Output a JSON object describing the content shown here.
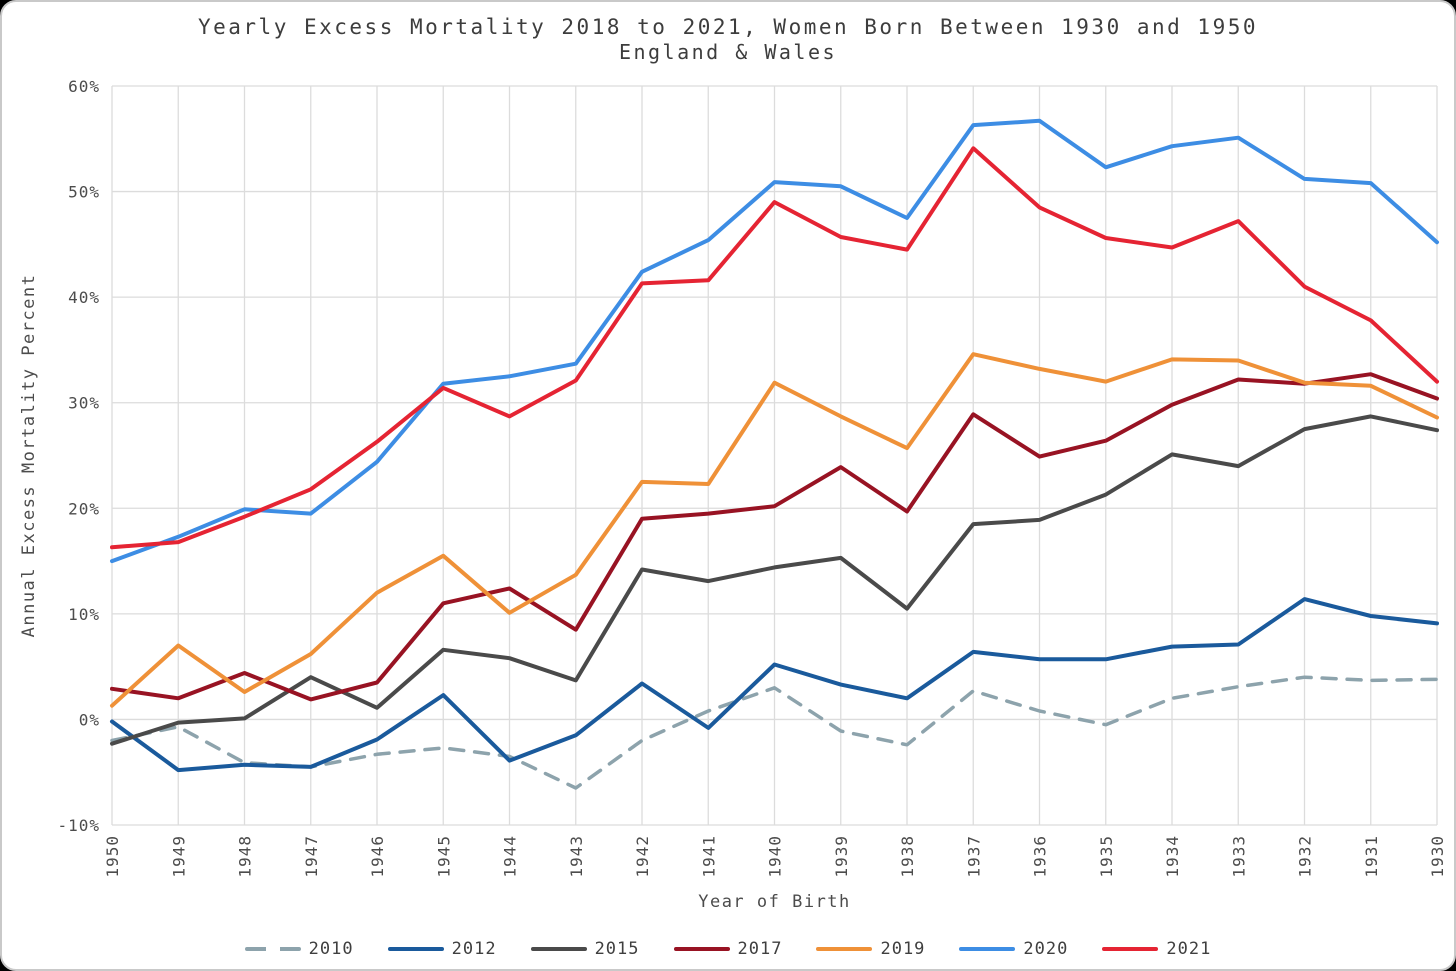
{
  "chart_data": {
    "type": "line",
    "title": "Yearly Excess Mortality 2018 to 2021, Women Born Between 1930 and 1950",
    "subtitle": "England & Wales",
    "xlabel": "Year of Birth",
    "ylabel": "Annual Excess Mortality Percent",
    "x_categories": [
      "1950",
      "1949",
      "1948",
      "1947",
      "1946",
      "1945",
      "1944",
      "1943",
      "1942",
      "1941",
      "1940",
      "1939",
      "1938",
      "1937",
      "1936",
      "1935",
      "1934",
      "1933",
      "1932",
      "1931",
      "1930"
    ],
    "ylim": [
      -10,
      60
    ],
    "ytick_values": [
      60,
      50,
      40,
      30,
      20,
      10,
      0,
      -10
    ],
    "ytick_labels": [
      "60%",
      "50%",
      "40%",
      "30%",
      "20%",
      "10%",
      "0%",
      "-10%"
    ],
    "grid": true,
    "legend_position": "bottom",
    "series": [
      {
        "name": "2010",
        "color": "#8da3ac",
        "dash": true,
        "values": [
          -2.0,
          -0.7,
          -4.1,
          -4.5,
          -3.3,
          -2.7,
          -3.5,
          -6.5,
          -2.0,
          0.8,
          3.0,
          -1.1,
          -2.4,
          2.7,
          0.8,
          -0.5,
          2.0,
          3.1,
          4.0,
          3.7,
          3.8
        ]
      },
      {
        "name": "2012",
        "color": "#1a5a9c",
        "dash": false,
        "values": [
          -0.2,
          -4.8,
          -4.3,
          -4.5,
          -1.9,
          2.3,
          -3.9,
          -1.5,
          3.4,
          -0.8,
          5.2,
          3.3,
          2.0,
          6.4,
          5.7,
          5.7,
          6.9,
          7.1,
          11.4,
          9.8,
          9.1
        ]
      },
      {
        "name": "2015",
        "color": "#4a4a4a",
        "dash": false,
        "values": [
          -2.3,
          -0.3,
          0.1,
          4.0,
          1.1,
          6.6,
          5.8,
          3.7,
          14.2,
          13.1,
          14.4,
          15.3,
          10.5,
          18.5,
          18.9,
          21.3,
          25.1,
          24.0,
          27.5,
          28.7,
          27.4
        ]
      },
      {
        "name": "2017",
        "color": "#981323",
        "dash": false,
        "values": [
          2.9,
          2.0,
          4.4,
          1.9,
          3.5,
          11.0,
          12.4,
          8.5,
          19.0,
          19.5,
          20.2,
          23.9,
          19.7,
          28.9,
          24.9,
          26.4,
          29.8,
          32.2,
          31.8,
          32.7,
          30.4
        ]
      },
      {
        "name": "2019",
        "color": "#ef9138",
        "dash": false,
        "values": [
          1.3,
          7.0,
          2.6,
          6.2,
          12.0,
          15.5,
          10.1,
          13.7,
          22.5,
          22.3,
          31.9,
          28.7,
          25.7,
          34.6,
          33.2,
          32.0,
          34.1,
          34.0,
          31.9,
          31.6,
          28.6
        ]
      },
      {
        "name": "2020",
        "color": "#3d8de4",
        "dash": false,
        "values": [
          15.0,
          17.3,
          19.9,
          19.5,
          24.4,
          31.8,
          32.5,
          33.7,
          42.4,
          45.4,
          50.9,
          50.5,
          47.5,
          56.3,
          56.7,
          52.3,
          54.3,
          55.1,
          51.2,
          50.8,
          45.2
        ]
      },
      {
        "name": "2021",
        "color": "#e52433",
        "dash": false,
        "values": [
          16.3,
          16.8,
          19.2,
          21.8,
          26.3,
          31.4,
          28.7,
          32.1,
          41.3,
          41.6,
          49.0,
          45.7,
          44.5,
          54.1,
          48.5,
          45.6,
          44.7,
          47.2,
          41.0,
          37.8,
          32.0
        ]
      }
    ]
  },
  "styles": {
    "grid_color": "#dcdcdc",
    "tick_text_color": "#4c4c4c",
    "title_text_color": "#3d3d3d",
    "background": "#ffffff"
  }
}
